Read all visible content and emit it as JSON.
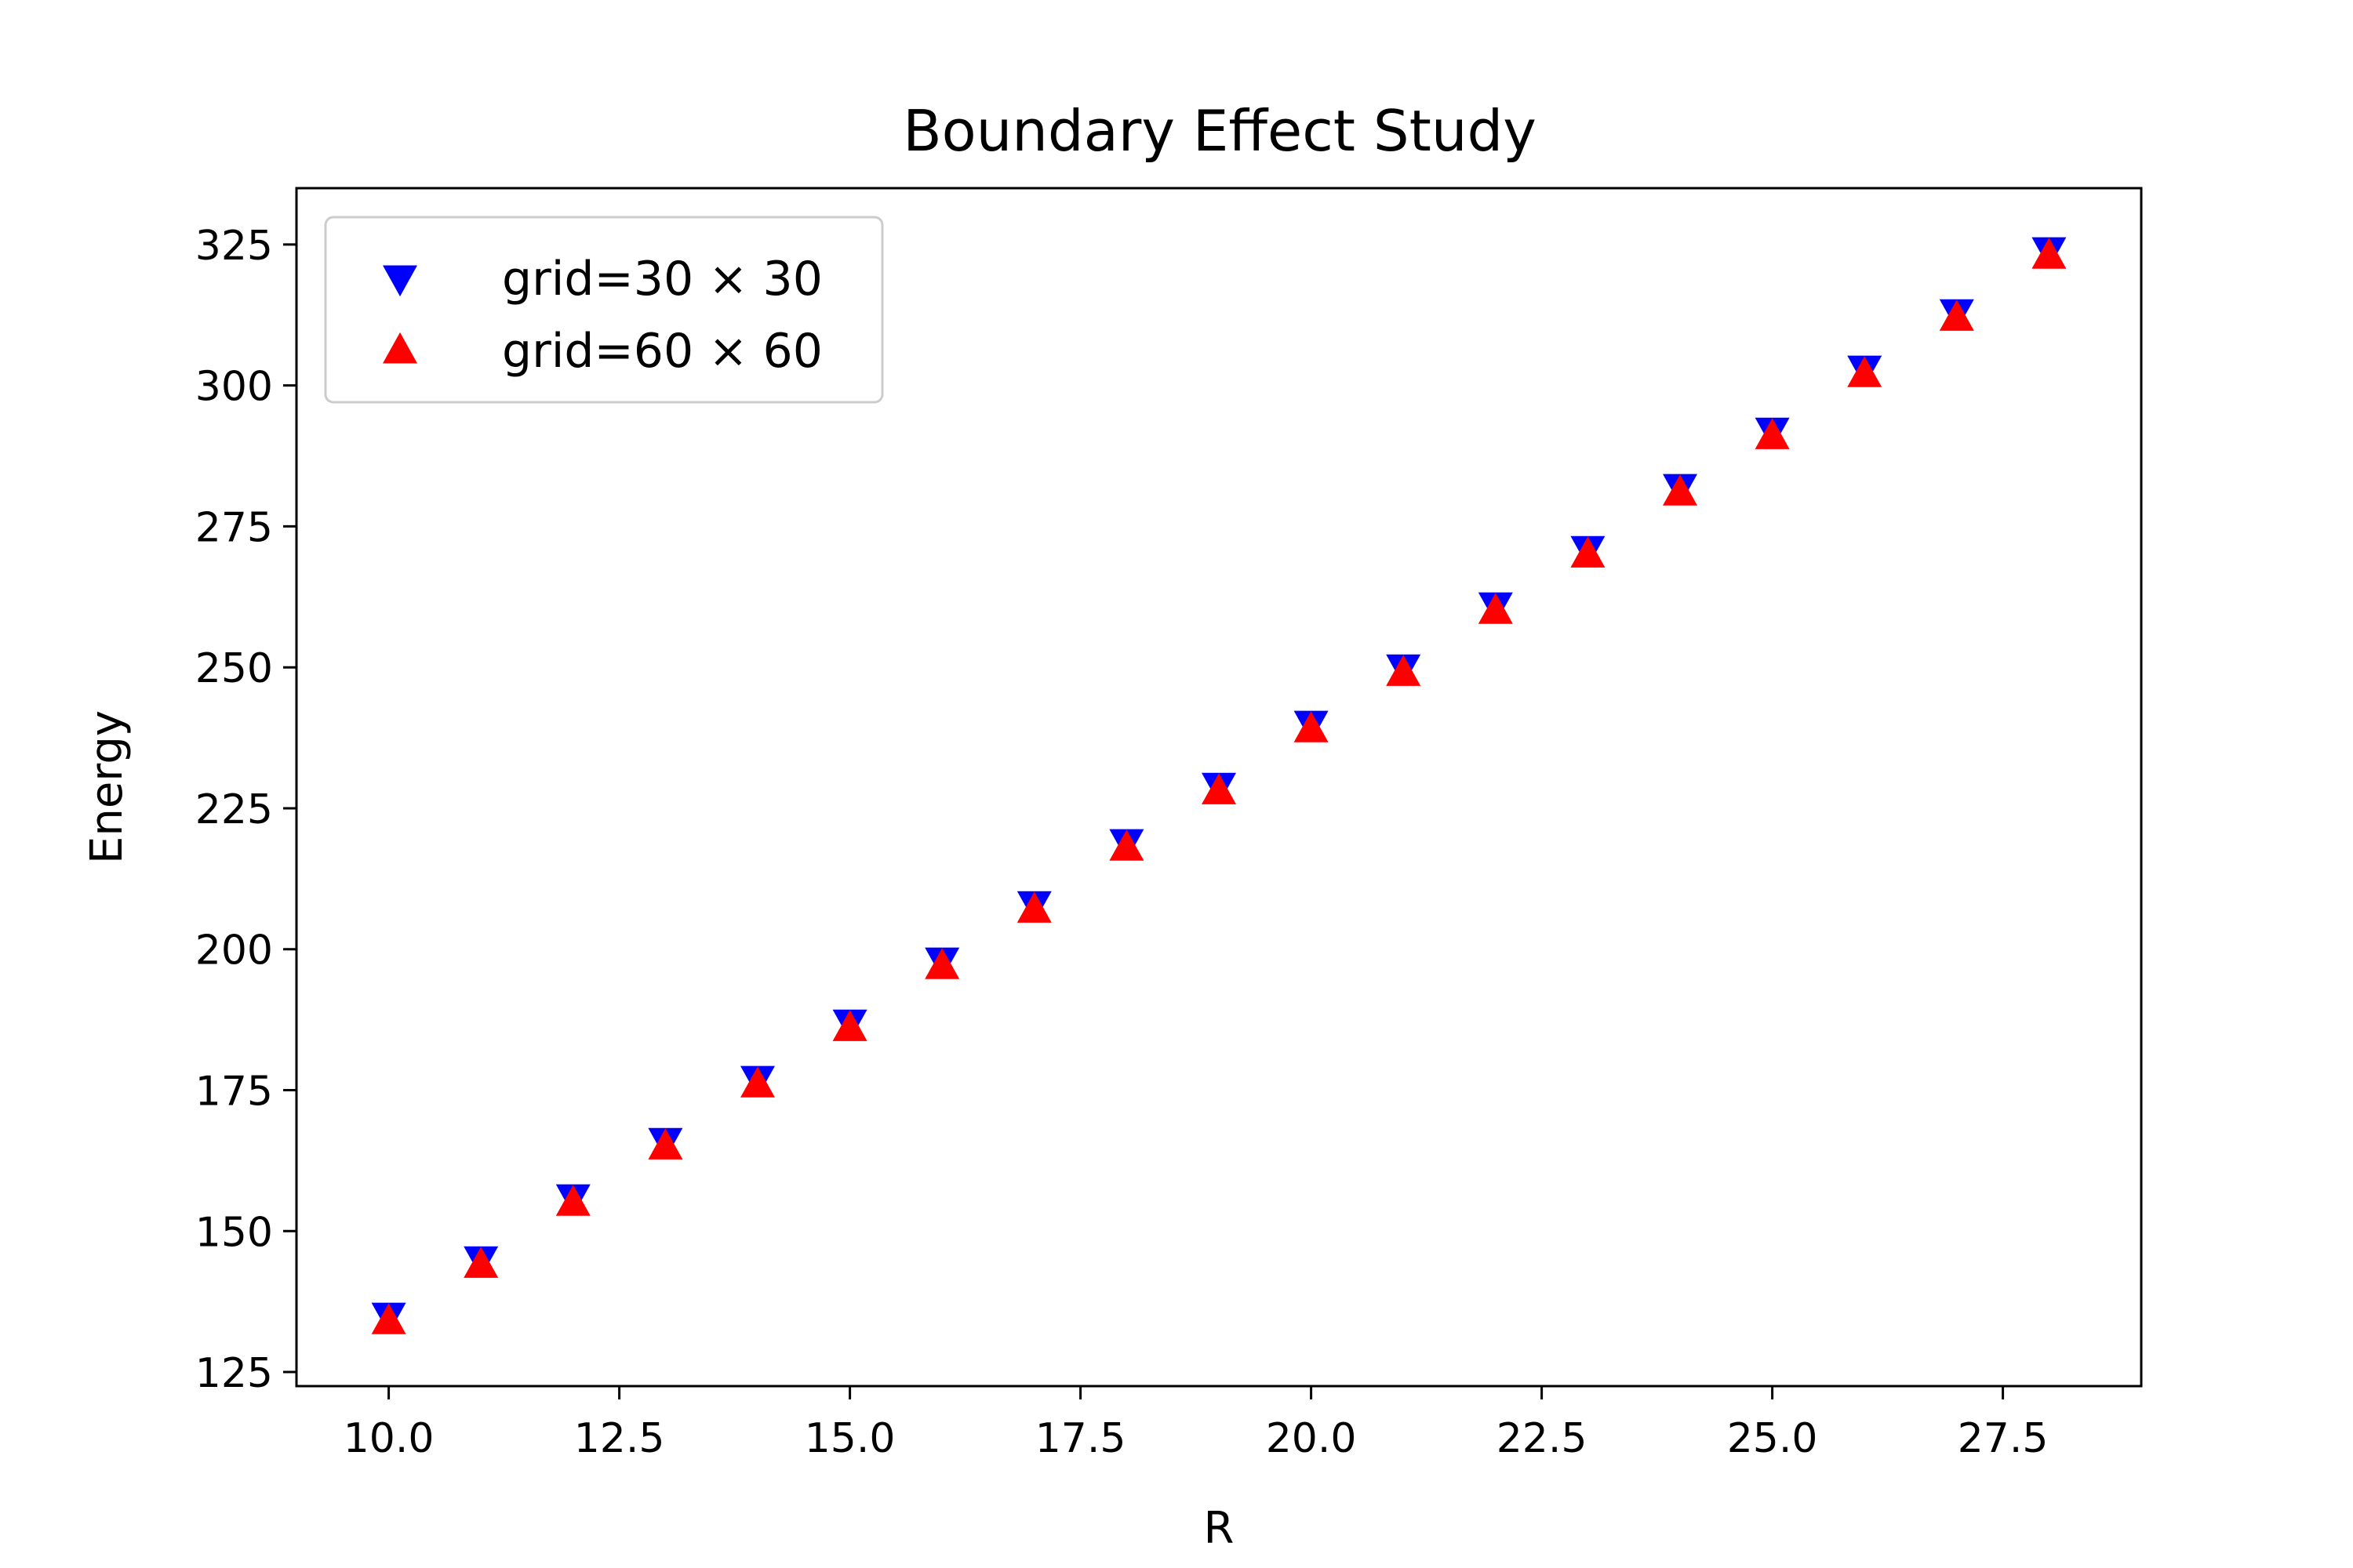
{
  "chart_data": {
    "type": "scatter",
    "title": "Boundary Effect Study",
    "xlabel": "R",
    "ylabel": "Energy",
    "xlim": [
      9,
      29
    ],
    "ylim": [
      122.5,
      335
    ],
    "xticks": [
      10.0,
      12.5,
      15.0,
      17.5,
      20.0,
      22.5,
      25.0,
      27.5
    ],
    "xtick_labels": [
      "10.0",
      "12.5",
      "15.0",
      "17.5",
      "20.0",
      "22.5",
      "25.0",
      "27.5"
    ],
    "yticks": [
      125,
      150,
      175,
      200,
      225,
      250,
      275,
      300,
      325
    ],
    "ytick_labels": [
      "125",
      "150",
      "175",
      "200",
      "225",
      "250",
      "275",
      "300",
      "325"
    ],
    "grid": false,
    "legend_position": "top-left",
    "x": [
      10,
      11,
      12,
      13,
      14,
      15,
      16,
      17,
      18,
      19,
      20,
      21,
      22,
      23,
      24,
      25,
      26,
      27,
      28
    ],
    "series": [
      {
        "name": "grid=30 × 30",
        "marker": "triangle-down",
        "color": "#0000ff",
        "values": [
          135,
          145,
          156,
          166,
          177,
          187,
          198,
          208,
          219,
          229,
          240,
          250,
          261,
          271,
          282,
          292,
          303,
          313,
          324
        ]
      },
      {
        "name": "grid=60 × 60",
        "marker": "triangle-up",
        "color": "#ff0000",
        "values": [
          134,
          144,
          155,
          165,
          176,
          186,
          197,
          207,
          218,
          228,
          239,
          249,
          260,
          270,
          281,
          291,
          302,
          312,
          323
        ]
      }
    ]
  }
}
